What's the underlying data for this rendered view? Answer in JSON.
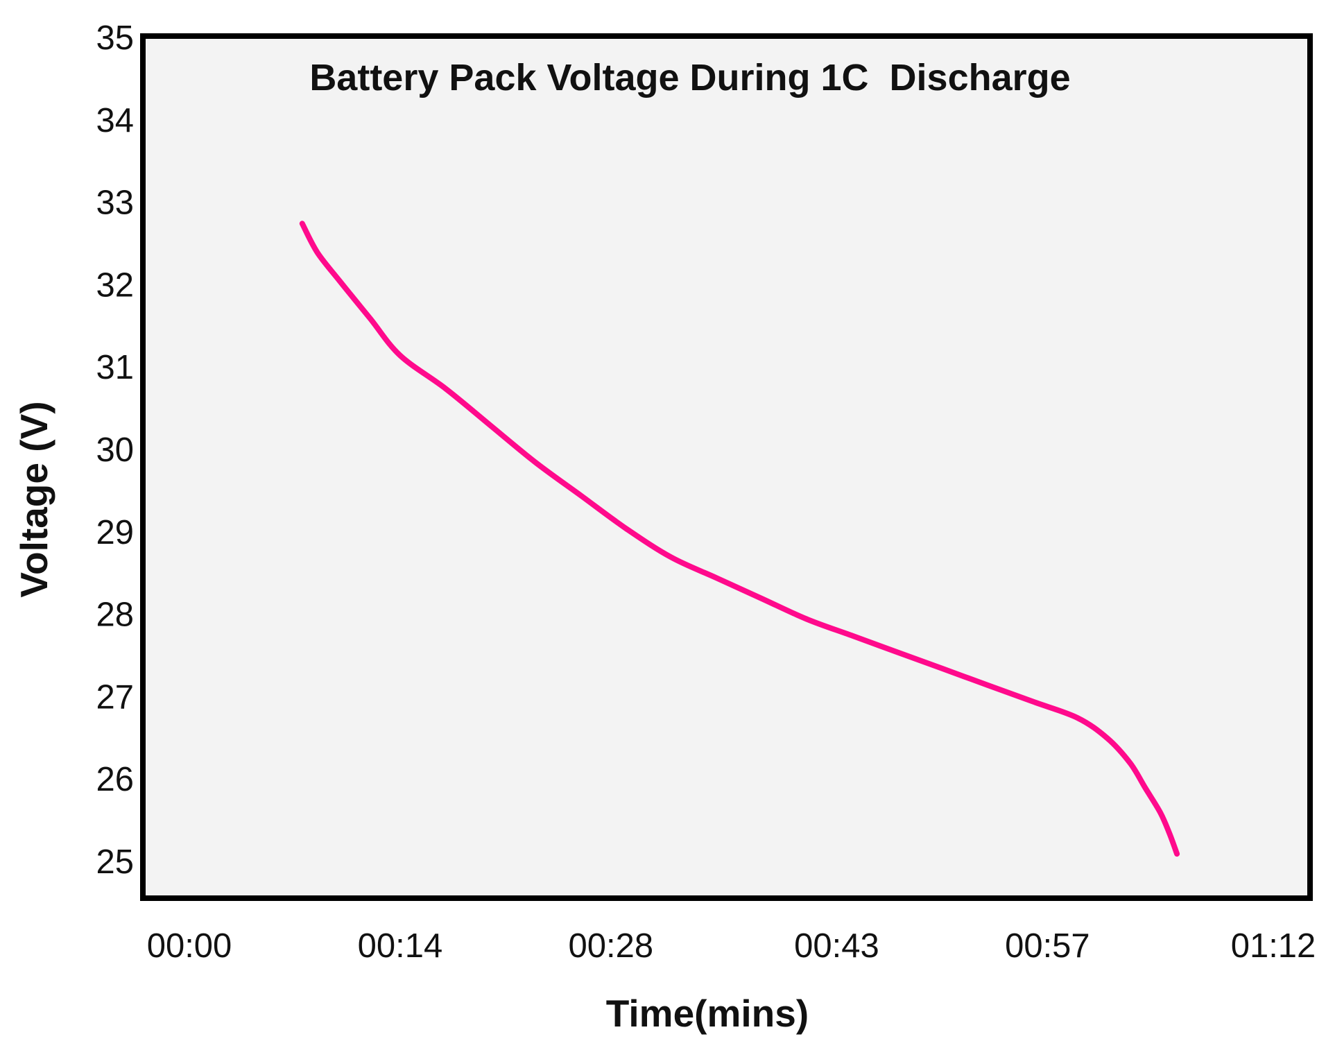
{
  "chart_data": {
    "type": "line",
    "title": "Battery Pack Voltage During 1C  Discharge",
    "xlabel": "Time(mins)",
    "ylabel": "Voltage (V)",
    "xlim": [
      0,
      72
    ],
    "ylim": [
      25,
      35
    ],
    "x_tick_values": [
      0,
      14,
      28,
      43,
      57,
      72
    ],
    "x_tick_labels": [
      "00:00",
      "00:14",
      "00:28",
      "00:43",
      "00:57",
      "01:12"
    ],
    "y_ticks": [
      25,
      26,
      27,
      28,
      29,
      30,
      31,
      32,
      33,
      34,
      35
    ],
    "grid": false,
    "background_color": "#f3f3f3",
    "frame_color": "#000000",
    "series": [
      {
        "name": "Battery Pack Voltage",
        "color": "#ff0a8c",
        "x": [
          7.5,
          8.5,
          10,
          12,
          14,
          17,
          20,
          23,
          26,
          29,
          32,
          35,
          38,
          41,
          44,
          47,
          50,
          53,
          56,
          59,
          61,
          62.5,
          63.5,
          64.5,
          65.1,
          65.6
        ],
        "y": [
          32.75,
          32.4,
          32.05,
          31.6,
          31.15,
          30.75,
          30.3,
          29.85,
          29.45,
          29.05,
          28.7,
          28.45,
          28.2,
          27.95,
          27.75,
          27.55,
          27.35,
          27.15,
          26.95,
          26.75,
          26.5,
          26.2,
          25.9,
          25.6,
          25.35,
          25.1
        ]
      }
    ]
  }
}
